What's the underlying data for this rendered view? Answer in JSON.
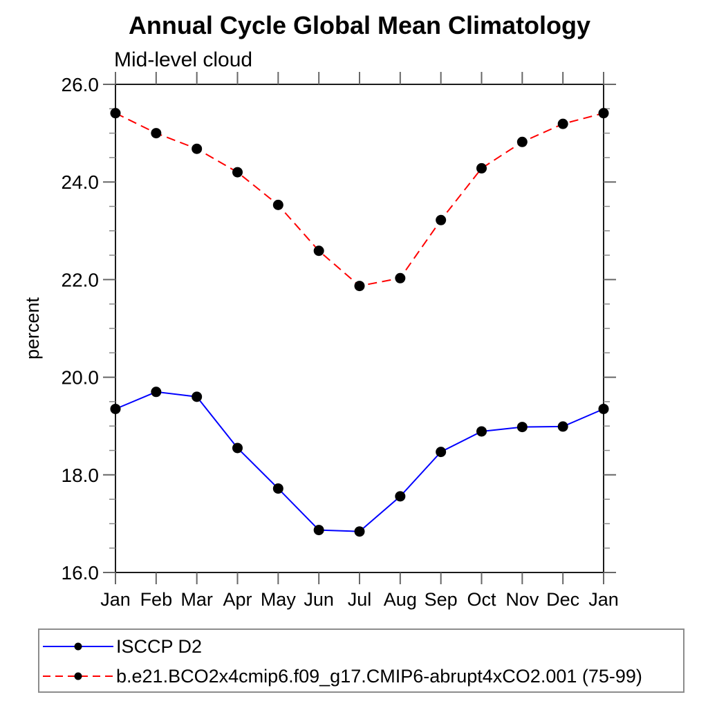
{
  "chart_data": {
    "type": "line",
    "title": "Annual Cycle Global Mean Climatology",
    "subtitle": "Mid-level cloud",
    "xlabel": "",
    "ylabel": "percent",
    "categories": [
      "Jan",
      "Feb",
      "Mar",
      "Apr",
      "May",
      "Jun",
      "Jul",
      "Aug",
      "Sep",
      "Oct",
      "Nov",
      "Dec",
      "Jan"
    ],
    "ylim": [
      16.0,
      26.0
    ],
    "ytick_major_step": 2.0,
    "ytick_minor_step": 0.5,
    "ytick_label_format": "one-decimal",
    "grid": false,
    "legend_position": "bottom-left-boxed",
    "series": [
      {
        "name": "ISCCP D2",
        "color": "#0000ff",
        "line_style": "solid",
        "marker": "filled-circle",
        "marker_color": "#000000",
        "values": [
          19.35,
          19.7,
          19.6,
          18.55,
          17.72,
          16.87,
          16.84,
          17.56,
          18.47,
          18.89,
          18.98,
          18.99,
          19.35
        ]
      },
      {
        "name": "b.e21.BCO2x4cmip6.f09_g17.CMIP6-abrupt4xCO2.001 (75-99)",
        "color": "#ff0000",
        "line_style": "dashed",
        "marker": "filled-circle",
        "marker_color": "#000000",
        "values": [
          25.41,
          25.0,
          24.68,
          24.2,
          23.53,
          22.59,
          21.87,
          22.03,
          23.22,
          24.28,
          24.82,
          25.19,
          25.41
        ]
      }
    ],
    "axis_color": "#1a1a1a",
    "major_tick_color": "#666666",
    "minor_tick_color": "#888888"
  }
}
